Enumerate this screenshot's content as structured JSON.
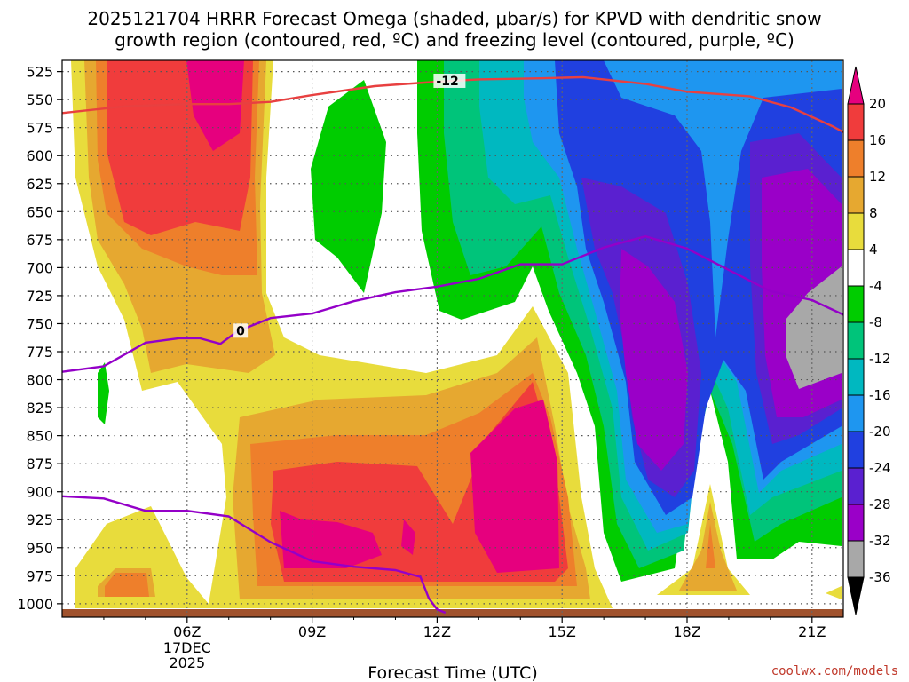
{
  "title_line1": "2025121704 HRRR Forecast Omega (shaded, μbar/s) for KPVD with dendritic snow",
  "title_line2": "growth region (contoured, red, ºC) and freezing level (contoured, purple, ºC)",
  "credit": "coolwx.com/models",
  "chart_data": {
    "type": "heatmap",
    "xlabel": "Forecast Time (UTC)",
    "x_ticks": [
      "06Z",
      "09Z",
      "12Z",
      "15Z",
      "18Z",
      "21Z"
    ],
    "x_tick_sub": [
      "17DEC",
      "2025"
    ],
    "x_range_hours": [
      3,
      21.75
    ],
    "y_ticks": [
      525,
      550,
      575,
      600,
      625,
      650,
      675,
      700,
      725,
      750,
      775,
      800,
      825,
      850,
      875,
      900,
      925,
      950,
      975,
      1000
    ],
    "y_range_hpa": [
      515,
      1012
    ],
    "grid": true,
    "colorbar": {
      "levels": [
        20,
        16,
        12,
        8,
        4,
        -4,
        -8,
        -12,
        -16,
        -20,
        -24,
        -28,
        -32,
        -36
      ],
      "colors": [
        "#e6007e",
        "#f03c3c",
        "#ee7f2b",
        "#e6a830",
        "#e8dc3c",
        "#ffffff",
        "#00cc00",
        "#00c47a",
        "#00b8c0",
        "#1e96f0",
        "#2040e0",
        "#5a20d0",
        "#9a00c8",
        "#a8a8a8",
        "#000000"
      ]
    },
    "contours": [
      {
        "label": "-12",
        "color": "#e84040",
        "points": [
          [
            3.0,
            562
          ],
          [
            4.5,
            556
          ],
          [
            6.0,
            554
          ],
          [
            7.0,
            554
          ],
          [
            8.0,
            552
          ],
          [
            9.0,
            546
          ],
          [
            10.5,
            538
          ],
          [
            12.0,
            534
          ],
          [
            13.0,
            532
          ],
          [
            14.5,
            531
          ],
          [
            15.5,
            530
          ],
          [
            17.0,
            536
          ],
          [
            18.0,
            543
          ],
          [
            19.5,
            547
          ],
          [
            20.5,
            557
          ],
          [
            21.5,
            574
          ],
          [
            21.75,
            579
          ]
        ]
      },
      {
        "label": "0",
        "color": "#9400c8",
        "points": [
          [
            3.0,
            793
          ],
          [
            4.0,
            788
          ],
          [
            5.0,
            767
          ],
          [
            5.8,
            763
          ],
          [
            6.3,
            763
          ],
          [
            6.8,
            768
          ],
          [
            7.2,
            757
          ],
          [
            8.0,
            745
          ],
          [
            9.0,
            741
          ],
          [
            10.0,
            730
          ],
          [
            11.0,
            722
          ],
          [
            12.0,
            717
          ],
          [
            13.0,
            710
          ],
          [
            14.0,
            697
          ],
          [
            15.0,
            697
          ],
          [
            16.0,
            682
          ],
          [
            17.0,
            672
          ],
          [
            18.0,
            683
          ],
          [
            19.0,
            702
          ],
          [
            20.0,
            721
          ],
          [
            21.0,
            729
          ],
          [
            21.75,
            742
          ]
        ]
      },
      {
        "label": "",
        "color": "#9400c8",
        "points": [
          [
            3.0,
            904
          ],
          [
            4.0,
            906
          ],
          [
            5.0,
            917
          ],
          [
            6.0,
            917
          ],
          [
            7.0,
            922
          ],
          [
            8.0,
            945
          ],
          [
            9.0,
            962
          ],
          [
            10.0,
            967
          ],
          [
            11.0,
            970
          ],
          [
            11.6,
            976
          ],
          [
            11.8,
            995
          ],
          [
            12.0,
            1005
          ],
          [
            12.2,
            1008
          ]
        ]
      }
    ]
  }
}
